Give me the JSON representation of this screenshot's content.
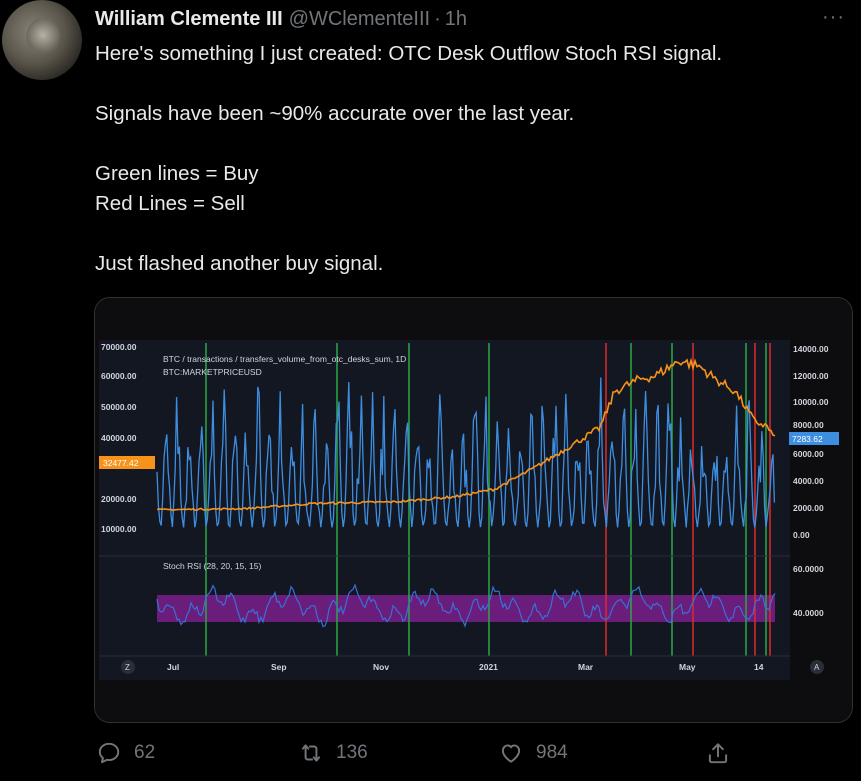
{
  "tweet": {
    "author_name": "William Clemente III",
    "handle": "@WClementeIII",
    "separator": "·",
    "time": "1h",
    "more": "···",
    "lines": [
      "Here's something I just created: OTC Desk Outflow Stoch RSI signal.",
      "Signals have been ~90% accurate over the last year.",
      "Green lines = Buy",
      "Red Lines = Sell",
      "Just flashed another buy signal."
    ]
  },
  "chart": {
    "title": "BTC / transactions / transfers_volume_from_otc_desks_sum, 1D",
    "subtitle": "BTC:MARKETPRICEUSD",
    "left_ticks": [
      "70000.00",
      "60000.00",
      "50000.00",
      "40000.00",
      "30000.00",
      "20000.00",
      "10000.00"
    ],
    "right_ticks": [
      "14000.00",
      "12000.00",
      "10000.00",
      "8000.00",
      "6000.00",
      "4000.00",
      "2000.00",
      "0.00"
    ],
    "price_badge": "32477.42",
    "volume_badge": "7283.62",
    "rsi_label": "Stoch RSI (28, 20, 15, 15)",
    "rsi_ticks": [
      "60.0000",
      "40.0000"
    ],
    "x_labels": [
      "Jul",
      "Sep",
      "Nov",
      "2021",
      "Mar",
      "May",
      "14"
    ],
    "corner_left": "Z",
    "corner_right": "A",
    "colors": {
      "price": "#f7931a",
      "volume": "#3d8ee0",
      "buy": "#2aa845",
      "sell": "#e02a2a",
      "rsi": "#3a6fd8",
      "band": "#7a1f8a"
    }
  },
  "chart_data": {
    "type": "line",
    "title": "BTC / transactions / transfers_volume_from_otc_desks_sum, 1D",
    "xlabel": "",
    "ylabel": "",
    "x_ticks": [
      "Jul",
      "Sep",
      "Nov",
      "2021",
      "Mar",
      "May",
      "14"
    ],
    "series": [
      {
        "name": "BTC:MARKETPRICEUSD",
        "axis": "left",
        "ylim": [
          0,
          70000
        ],
        "x": [
          "Jul",
          "Sep",
          "Nov",
          "2021",
          "Mar",
          "May",
          "14"
        ],
        "values": [
          9200,
          11500,
          13800,
          29000,
          55000,
          57000,
          32477.42
        ]
      }
    ],
    "secondary_ylim": [
      0,
      14000
    ],
    "last_volume": 7283.62,
    "stoch_rsi_ticks": [
      60,
      40
    ],
    "buy_signal_count": 9,
    "sell_signal_count": 5
  },
  "actions": {
    "replies": "62",
    "retweets": "136",
    "likes": "984"
  }
}
